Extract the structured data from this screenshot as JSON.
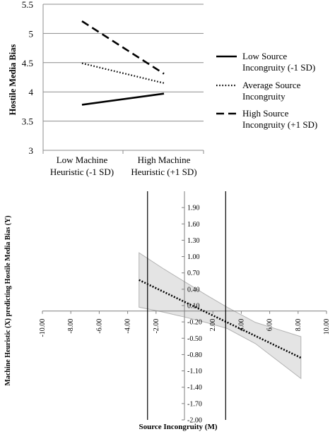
{
  "chart_data": [
    {
      "type": "line",
      "ylabel": "Hostile Media Bias",
      "ylim": [
        3,
        5.5
      ],
      "yticks": [
        "3",
        "3.5",
        "4",
        "4.5",
        "5",
        "5.5"
      ],
      "categories": [
        [
          "Low Machine",
          "Heuristic (-1 SD)"
        ],
        [
          "High Machine",
          "Heuristic (+1 SD)"
        ]
      ],
      "grid": true,
      "legend_position": "right",
      "series": [
        {
          "name": [
            "Low Source",
            "Incongruity (-1 SD)"
          ],
          "values": [
            3.78,
            3.97
          ],
          "style": "solid"
        },
        {
          "name": [
            "Average Source",
            "Incongruity"
          ],
          "values": [
            4.49,
            4.15
          ],
          "style": "dotted"
        },
        {
          "name": [
            "High Source",
            "Incongruity (+1 SD)"
          ],
          "values": [
            5.21,
            4.31
          ],
          "style": "dashed"
        }
      ]
    },
    {
      "type": "line",
      "xlabel": "Source Incongruity (M)",
      "ylabel": "Machine Heuristic (X) predicting Hostile Media Bias (Y)",
      "xlim": [
        -10,
        10
      ],
      "ylim": [
        -2,
        2.2
      ],
      "xticks": [
        -10,
        -8,
        -6,
        -4,
        -2,
        2,
        4,
        6,
        8,
        10
      ],
      "xtick_labels": [
        "-10.00",
        "-8.00",
        "-6.00",
        "-4.00",
        "-2.00",
        "2.00",
        "4.00",
        "6.00",
        "8.00",
        "10.00"
      ],
      "yticks": [
        1.9,
        1.6,
        1.3,
        1.0,
        0.7,
        0.4,
        0.1,
        -0.2,
        -0.5,
        -0.8,
        -1.1,
        -1.4,
        -1.7,
        -2.0
      ],
      "ytick_labels": [
        "1.90",
        "1.60",
        "1.30",
        "1.00",
        "0.70",
        "0.40",
        "0.10",
        "-0.20",
        "-0.50",
        "-0.80",
        "-1.10",
        "-1.40",
        "-1.70",
        "-2.00"
      ],
      "effect_line": {
        "x": [
          -3.2,
          8.2
        ],
        "y": [
          0.57,
          -0.86
        ],
        "style": "dotted"
      },
      "confidence_band": {
        "x": [
          -3.2,
          -1.5,
          0,
          1.5,
          3,
          5,
          8.2
        ],
        "upper": [
          1.07,
          0.78,
          0.54,
          0.3,
          0.07,
          -0.21,
          -0.47
        ],
        "lower": [
          0.07,
          -0.02,
          -0.11,
          -0.21,
          -0.32,
          -0.6,
          -1.24
        ]
      },
      "vertical_lines_x": [
        -2.6,
        2.9
      ]
    }
  ]
}
